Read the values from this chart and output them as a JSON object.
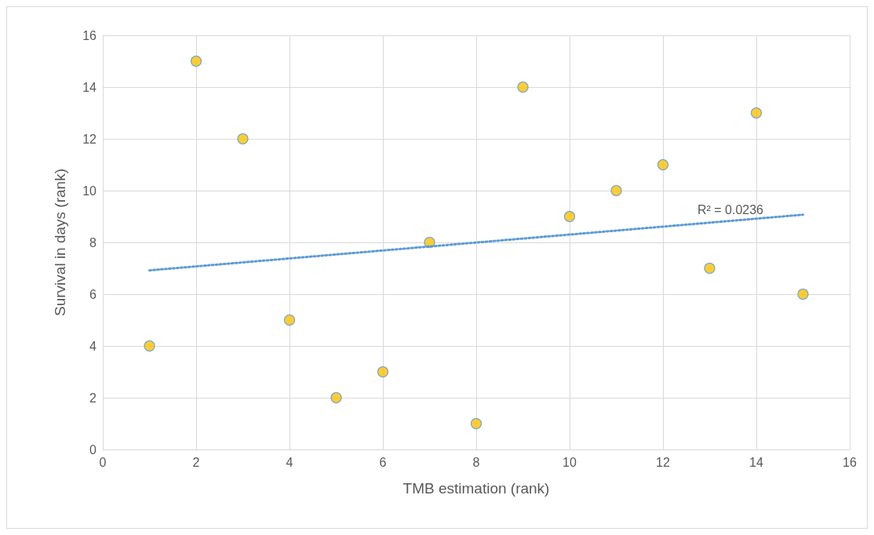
{
  "chart_data": {
    "type": "scatter",
    "xlabel": "TMB estimation (rank)",
    "ylabel": "Survival in days (rank)",
    "xlim": [
      0,
      16
    ],
    "xticks": [
      0,
      2,
      4,
      6,
      8,
      10,
      12,
      14,
      16
    ],
    "ylim": [
      0,
      16
    ],
    "yticks": [
      0,
      2,
      4,
      6,
      8,
      10,
      12,
      14,
      16
    ],
    "grid": true,
    "marker": "circle",
    "series": [
      {
        "color": "#ffc000",
        "x": [
          1,
          2,
          3,
          4,
          5,
          6,
          7,
          8,
          9,
          10,
          11,
          12,
          13,
          14,
          15
        ],
        "values": [
          4,
          15,
          12,
          5,
          2,
          3,
          8,
          1,
          14,
          9,
          10,
          11,
          7,
          13,
          6
        ]
      },
      {
        "type": "line",
        "color": "#5b9bd5",
        "line_style": "dotted",
        "marker": "none",
        "x": [
          1,
          15
        ],
        "values": [
          6.92,
          9.07
        ]
      }
    ],
    "annotations": [
      "R² = 0.0236"
    ]
  }
}
